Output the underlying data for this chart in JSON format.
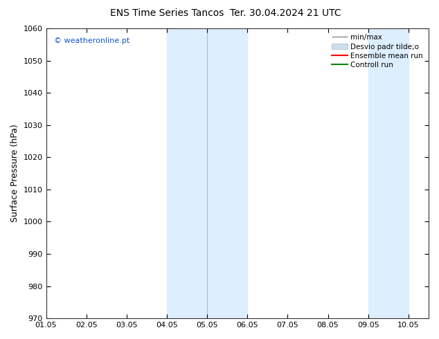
{
  "title_left": "ENS Time Series Tancos",
  "title_right": "Ter. 30.04.2024 21 UTC",
  "ylabel": "Surface Pressure (hPa)",
  "ylim": [
    970,
    1060
  ],
  "yticks": [
    970,
    980,
    990,
    1000,
    1010,
    1020,
    1030,
    1040,
    1050,
    1060
  ],
  "xtick_labels": [
    "01.05",
    "02.05",
    "03.05",
    "04.05",
    "05.05",
    "06.05",
    "07.05",
    "08.05",
    "09.05",
    "10.05"
  ],
  "xtick_positions": [
    1,
    2,
    3,
    4,
    5,
    6,
    7,
    8,
    9,
    10
  ],
  "xlim": [
    1,
    10.5
  ],
  "shade_bands": [
    {
      "xstart": 4.0,
      "xend": 5.0,
      "color": "#ddeeff"
    },
    {
      "xstart": 5.0,
      "xend": 6.0,
      "color": "#ddeeff"
    },
    {
      "xstart": 9.0,
      "xend": 10.0,
      "color": "#ddeeff"
    }
  ],
  "vlines": [
    5.0
  ],
  "copyright_text": "© weatheronline.pt",
  "copyright_color": "#1155cc",
  "legend_labels": [
    "min/max",
    "Desvio padr tilde;o",
    "Ensemble mean run",
    "Controll run"
  ],
  "minmax_color": "#888888",
  "desvio_color": "#ccddee",
  "ensemble_color": "#ff0000",
  "control_color": "#008800",
  "background_color": "#ffffff",
  "title_fontsize": 10,
  "axis_label_fontsize": 9,
  "tick_fontsize": 8,
  "legend_fontsize": 7.5
}
